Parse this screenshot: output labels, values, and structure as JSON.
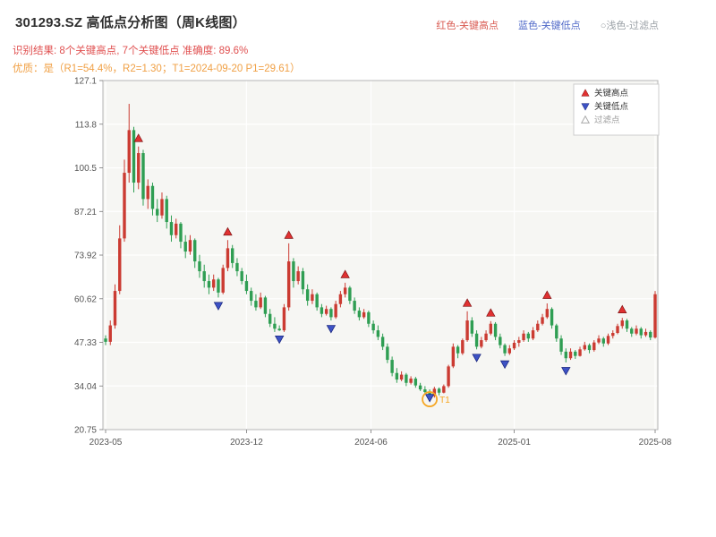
{
  "header": {
    "title": "301293.SZ 高低点分析图（周K线图）",
    "legend_top": [
      {
        "label": "红色-关键高点",
        "color": "#d95b52"
      },
      {
        "label": "蓝色-关键低点",
        "color": "#5069c8"
      },
      {
        "label": "○浅色-过滤点",
        "color": "#9aa0a6"
      }
    ],
    "result_line": "识别结果: 8个关键高点, 7个关键低点  准确度: 89.6%",
    "result_color": "#e05050",
    "quality_line": "优质：是（R1=54.4%，R2=1.30；T1=2024-09-20 P1=29.61）",
    "quality_color": "#f0a045"
  },
  "legend_box": {
    "items": [
      {
        "label": "关键高点",
        "marker": "triangle-up",
        "color": "#e03131",
        "text_color": "#333333"
      },
      {
        "label": "关键低点",
        "marker": "triangle-down",
        "color": "#3d52c4",
        "text_color": "#333333"
      },
      {
        "label": "过滤点",
        "marker": "triangle-up-hollow",
        "color": "#aaaaaa",
        "text_color": "#999999"
      }
    ]
  },
  "chart_data": {
    "type": "candlestick",
    "title": "301293.SZ 高低点分析图（周K线图）",
    "symbol": "301293.SZ",
    "timeframe": "weekly",
    "key_high_count": 8,
    "key_low_count": 7,
    "accuracy": "89.6%",
    "x_ticks": [
      {
        "label": "2023-05",
        "week": 0
      },
      {
        "label": "2023-12",
        "week": 30
      },
      {
        "label": "2024-06",
        "week": 56.5
      },
      {
        "label": "2025-01",
        "week": 87
      },
      {
        "label": "2025-08",
        "week": 117
      }
    ],
    "y_tick_labels": [
      "20.75",
      "34.04",
      "47.33",
      "60.62",
      "73.92",
      "87.21",
      "100.5",
      "113.8",
      "127.1"
    ],
    "y_ticks": [
      20.75,
      34.04,
      47.33,
      60.62,
      73.92,
      87.21,
      100.5,
      113.8,
      127.1
    ],
    "ylim": [
      20.75,
      127.1
    ],
    "grid": true,
    "colors": {
      "up": "#cb3b32",
      "down": "#2f9e53",
      "key_high": "#e03131",
      "key_low": "#3d52c4",
      "t1": "#f5a623",
      "panel": "#f6f6f3",
      "grid": "#ffffff",
      "axis": "#b4b4b4",
      "tick_text": "#555555"
    },
    "candles_ohlc": [
      [
        48.5,
        49.5,
        46.5,
        47.5
      ],
      [
        47.5,
        54,
        46.5,
        52.5
      ],
      [
        52.5,
        65,
        51.5,
        63
      ],
      [
        63,
        83,
        62,
        79
      ],
      [
        79,
        103,
        78,
        99
      ],
      [
        99,
        120,
        96,
        112
      ],
      [
        112,
        113,
        93,
        96
      ],
      [
        96,
        107,
        94,
        105
      ],
      [
        105,
        106,
        89,
        91
      ],
      [
        91,
        97,
        88,
        95
      ],
      [
        95,
        96,
        86,
        88
      ],
      [
        88,
        91,
        84,
        86
      ],
      [
        86,
        93,
        85,
        91
      ],
      [
        91,
        92,
        82,
        84
      ],
      [
        84,
        86,
        78,
        80
      ],
      [
        80,
        85,
        79,
        83.5
      ],
      [
        83.5,
        84,
        76,
        78
      ],
      [
        78,
        80,
        73,
        75
      ],
      [
        75,
        80,
        74,
        78.5
      ],
      [
        78.5,
        79,
        70,
        72
      ],
      [
        72,
        74,
        67,
        69
      ],
      [
        69,
        71,
        64,
        66
      ],
      [
        66,
        68,
        62,
        64
      ],
      [
        64,
        68,
        63,
        66.5
      ],
      [
        66.5,
        67,
        61,
        62.5
      ],
      [
        62.5,
        71,
        62,
        70
      ],
      [
        70,
        78.5,
        69,
        76
      ],
      [
        76,
        77,
        70,
        71.5
      ],
      [
        71.5,
        73,
        67.5,
        69
      ],
      [
        69,
        70,
        65,
        66
      ],
      [
        66,
        68,
        62,
        63
      ],
      [
        63,
        64,
        58.5,
        60
      ],
      [
        60,
        62,
        57,
        58
      ],
      [
        58,
        62.5,
        57.5,
        61
      ],
      [
        61,
        61.5,
        55,
        56
      ],
      [
        56,
        57.5,
        52,
        53
      ],
      [
        53,
        55,
        50.5,
        51.5
      ],
      [
        51.5,
        52.5,
        50.8,
        51
      ],
      [
        51,
        59,
        50.5,
        58
      ],
      [
        58,
        77.5,
        57,
        72
      ],
      [
        72,
        73,
        64,
        66
      ],
      [
        66,
        70.5,
        65,
        69
      ],
      [
        69,
        70,
        62,
        63.5
      ],
      [
        63.5,
        65,
        58.5,
        60
      ],
      [
        60,
        63.5,
        59,
        62
      ],
      [
        62,
        62.5,
        57,
        58
      ],
      [
        58,
        59,
        55,
        56
      ],
      [
        56,
        58.5,
        55.5,
        57.5
      ],
      [
        57.5,
        58,
        54,
        55
      ],
      [
        55,
        60,
        54.5,
        59
      ],
      [
        59,
        63,
        58,
        62
      ],
      [
        62,
        65.5,
        61,
        64
      ],
      [
        64,
        64.5,
        59,
        60
      ],
      [
        60,
        61,
        56,
        57
      ],
      [
        57,
        58,
        54,
        55
      ],
      [
        55,
        57.5,
        54.5,
        56.5
      ],
      [
        56.5,
        57,
        52,
        53
      ],
      [
        53,
        54,
        50,
        51
      ],
      [
        51,
        52.5,
        48,
        49
      ],
      [
        49,
        50,
        45,
        46
      ],
      [
        46,
        47,
        41,
        42
      ],
      [
        42,
        43,
        37,
        38
      ],
      [
        38,
        39.5,
        35,
        36
      ],
      [
        36,
        38.5,
        35.5,
        37.5
      ],
      [
        37.5,
        38,
        34,
        35
      ],
      [
        35,
        37,
        34.5,
        36.3
      ],
      [
        36.3,
        36.8,
        33.5,
        34.2
      ],
      [
        34.2,
        35,
        32.5,
        33
      ],
      [
        33,
        34,
        31.5,
        32.2
      ],
      [
        32.2,
        33,
        29.61,
        31
      ],
      [
        31,
        33.8,
        30.5,
        33.2
      ],
      [
        33.2,
        33.6,
        31.2,
        32
      ],
      [
        32,
        34.5,
        31.8,
        34
      ],
      [
        34,
        40.5,
        33.5,
        40
      ],
      [
        40,
        47,
        39.5,
        46
      ],
      [
        46,
        46.5,
        42.5,
        44
      ],
      [
        44,
        48.5,
        43.5,
        48
      ],
      [
        48,
        56.8,
        47.5,
        54
      ],
      [
        54,
        55,
        49,
        50
      ],
      [
        50,
        51,
        45.2,
        46
      ],
      [
        46,
        49,
        45.5,
        48
      ],
      [
        48,
        51,
        47.5,
        50
      ],
      [
        50,
        53.8,
        49.5,
        53
      ],
      [
        53,
        53.5,
        48,
        49
      ],
      [
        49,
        50,
        45.5,
        46.5
      ],
      [
        46.5,
        47,
        43.2,
        44
      ],
      [
        44,
        46.5,
        43.5,
        45.5
      ],
      [
        45.5,
        48,
        45,
        47.2
      ],
      [
        47.2,
        49,
        46,
        48
      ],
      [
        48,
        51,
        47.5,
        50
      ],
      [
        50,
        50.5,
        47.5,
        48.5
      ],
      [
        48.5,
        52,
        48,
        51
      ],
      [
        51,
        54,
        50.5,
        53
      ],
      [
        53,
        56,
        52.5,
        55
      ],
      [
        55,
        59.2,
        54.5,
        57.5
      ],
      [
        57.5,
        58,
        51.5,
        52.5
      ],
      [
        52.5,
        53,
        47.5,
        48.5
      ],
      [
        48.5,
        49.5,
        43.5,
        44.5
      ],
      [
        44.5,
        45.5,
        41.2,
        42.5
      ],
      [
        42.5,
        45.5,
        42,
        44.5
      ],
      [
        44.5,
        45,
        42.3,
        43.2
      ],
      [
        43.2,
        46,
        43,
        45.2
      ],
      [
        45.2,
        47.5,
        44.8,
        46.5
      ],
      [
        46.5,
        47,
        44,
        45
      ],
      [
        45,
        48,
        44.5,
        47.3
      ],
      [
        47.3,
        49.5,
        46.8,
        48.5
      ],
      [
        48.5,
        49,
        46,
        47
      ],
      [
        47,
        50,
        46.5,
        49.3
      ],
      [
        49.3,
        51,
        48.5,
        50.2
      ],
      [
        50.2,
        53,
        49.8,
        52.3
      ],
      [
        52.3,
        54.8,
        51.5,
        54
      ],
      [
        54,
        54.5,
        50.5,
        51.5
      ],
      [
        51.5,
        52,
        49,
        50
      ],
      [
        50,
        52.5,
        49.5,
        51.5
      ],
      [
        51.5,
        52,
        48.5,
        49.5
      ],
      [
        49.5,
        51.5,
        49,
        50.5
      ],
      [
        50.5,
        51,
        48,
        48.8
      ],
      [
        48.8,
        63,
        48.5,
        62
      ]
    ],
    "key_highs": [
      {
        "week": 7,
        "price": 109.5
      },
      {
        "week": 26,
        "price": 81
      },
      {
        "week": 39,
        "price": 80
      },
      {
        "week": 51,
        "price": 68
      },
      {
        "week": 77,
        "price": 59.3
      },
      {
        "week": 82,
        "price": 56.3
      },
      {
        "week": 94,
        "price": 61.7
      },
      {
        "week": 110,
        "price": 57.3
      }
    ],
    "key_lows": [
      {
        "week": 24,
        "price": 58.5
      },
      {
        "week": 37,
        "price": 48.3
      },
      {
        "week": 48,
        "price": 51.5
      },
      {
        "week": 69,
        "price": 30.5
      },
      {
        "week": 79,
        "price": 42.7
      },
      {
        "week": 85,
        "price": 40.7
      },
      {
        "week": 98,
        "price": 38.7
      }
    ],
    "t1_marker": {
      "week": 69,
      "price": 30,
      "label": "T1",
      "p1_value": 29.61
    }
  }
}
